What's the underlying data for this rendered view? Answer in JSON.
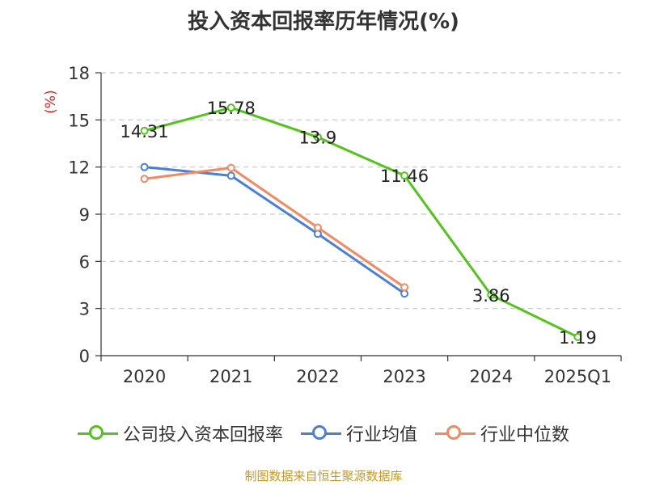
{
  "chart_data": {
    "type": "line",
    "title": "投入资本回报率历年情况(%)",
    "ylabel": "(%)",
    "categories": [
      "2020",
      "2021",
      "2022",
      "2023",
      "2024",
      "2025Q1"
    ],
    "ylim": [
      0,
      18
    ],
    "yticks": [
      "0",
      "3",
      "6",
      "9",
      "12",
      "15",
      "18"
    ],
    "grid": true,
    "legend_position": "bottom",
    "series": [
      {
        "name": "公司投入资本回报率",
        "color": "#52c41a",
        "values": [
          14.31,
          15.78,
          13.9,
          11.46,
          3.86,
          1.19
        ],
        "labels": [
          "14.31",
          "15.78",
          "13.9",
          "11.46",
          "3.86",
          "1.19"
        ]
      },
      {
        "name": "行业均值",
        "color": "#4a7fd8",
        "values": [
          12.0,
          11.45,
          7.75,
          3.95,
          null,
          null
        ]
      },
      {
        "name": "行业中位数",
        "color": "#f4895f",
        "values": [
          11.25,
          11.95,
          8.15,
          4.35,
          null,
          null
        ]
      }
    ]
  },
  "source_note": "制图数据来自恒生聚源数据库"
}
